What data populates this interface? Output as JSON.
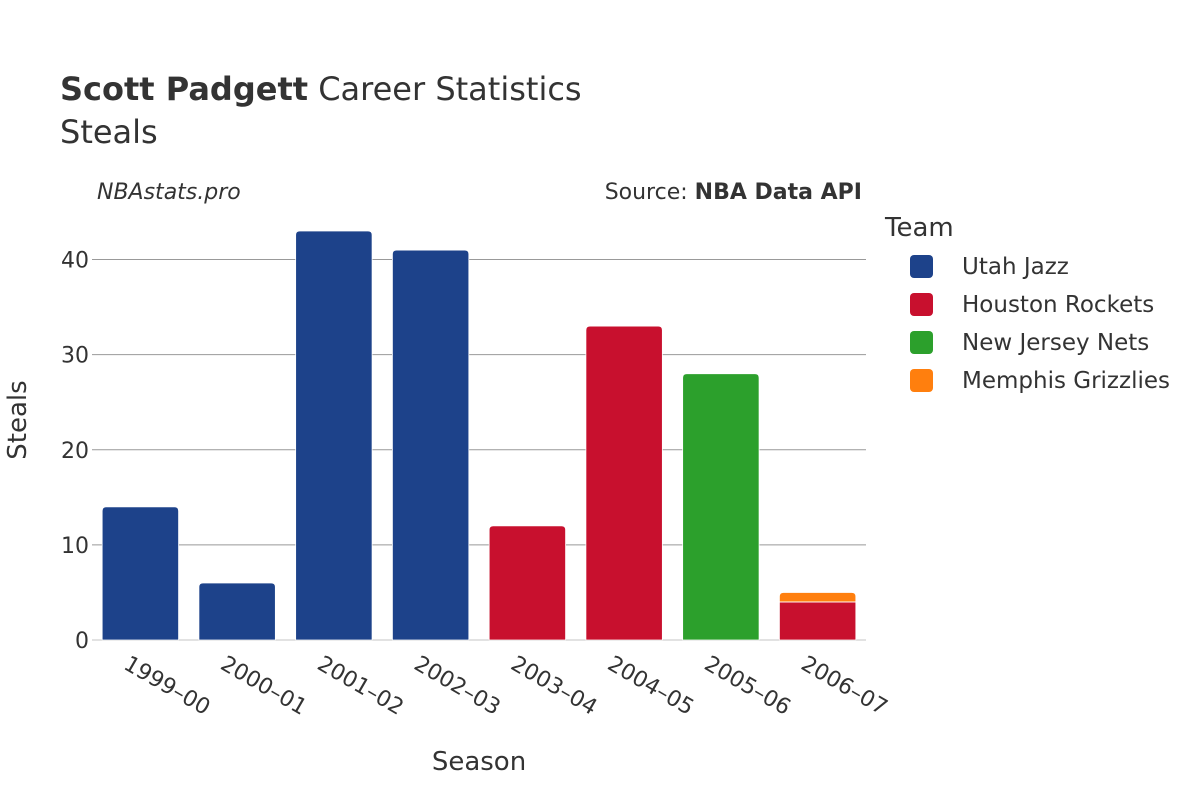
{
  "header": {
    "title_bold": "Scott Padgett",
    "title_rest": " Career Statistics",
    "subtitle": "Steals"
  },
  "watermark": "NBAstats.pro",
  "source": {
    "prefix": "Source: ",
    "name": "NBA Data API"
  },
  "legend": {
    "title": "Team",
    "items": [
      {
        "label": "Utah Jazz",
        "color": "#1d428a"
      },
      {
        "label": "Houston Rockets",
        "color": "#c8102e"
      },
      {
        "label": "New Jersey Nets",
        "color": "#2ca02c"
      },
      {
        "label": "Memphis Grizzlies",
        "color": "#ff7f0e"
      }
    ]
  },
  "chart_data": {
    "type": "bar",
    "stacked": true,
    "title": "Scott Padgett Career Statistics",
    "subtitle": "Steals",
    "xlabel": "Season",
    "ylabel": "Steals",
    "ylim": [
      0,
      45
    ],
    "yticks": [
      0,
      10,
      20,
      30,
      40
    ],
    "grid": true,
    "legend_position": "right",
    "categories": [
      "1999–00",
      "2000–01",
      "2001–02",
      "2002–03",
      "2003–04",
      "2004–05",
      "2005–06",
      "2006–07"
    ],
    "series": [
      {
        "name": "Utah Jazz",
        "color": "#1d428a",
        "values": [
          14,
          6,
          43,
          41,
          0,
          0,
          0,
          0
        ]
      },
      {
        "name": "Houston Rockets",
        "color": "#c8102e",
        "values": [
          0,
          0,
          0,
          0,
          12,
          33,
          0,
          4
        ]
      },
      {
        "name": "New Jersey Nets",
        "color": "#2ca02c",
        "values": [
          0,
          0,
          0,
          0,
          0,
          0,
          28,
          0
        ]
      },
      {
        "name": "Memphis Grizzlies",
        "color": "#ff7f0e",
        "values": [
          0,
          0,
          0,
          0,
          0,
          0,
          0,
          1
        ]
      }
    ]
  }
}
